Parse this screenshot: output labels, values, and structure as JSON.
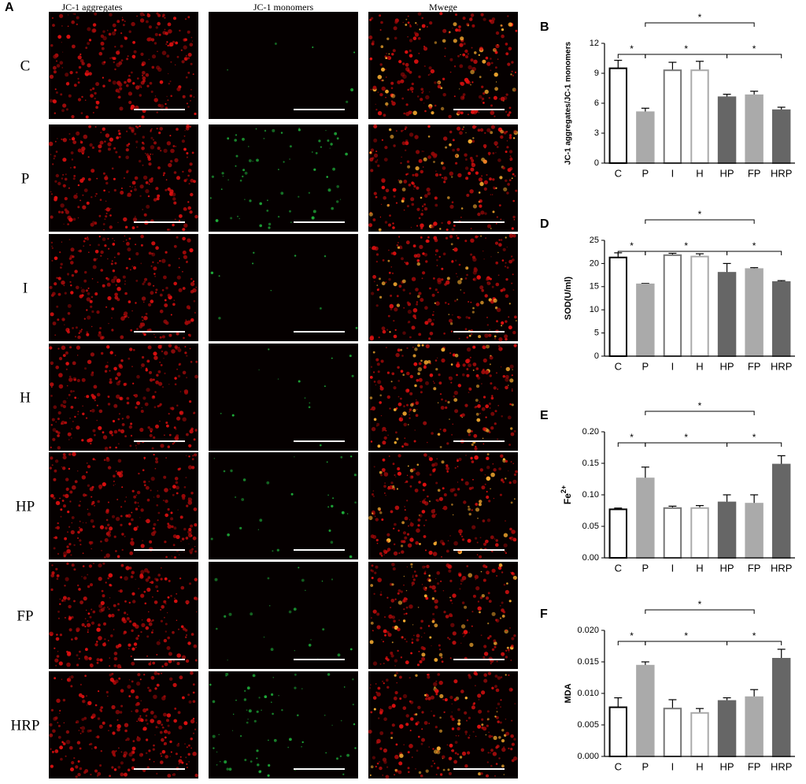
{
  "panel_a": {
    "letter": "A",
    "columns": [
      "JC-1 aggregates",
      "JC-1 monomers",
      "Mwege"
    ],
    "rows": [
      "C",
      "P",
      "I",
      "H",
      "HP",
      "FP",
      "HRP"
    ]
  },
  "chart_data": [
    {
      "type": "bar",
      "panel": "B",
      "y_label": "JC-1 aggregates/JC-1 monomers",
      "categories": [
        "C",
        "P",
        "I",
        "H",
        "HP",
        "FP",
        "HRP"
      ],
      "values": [
        9.5,
        5.1,
        9.3,
        9.3,
        6.6,
        6.8,
        5.3
      ],
      "errors": [
        0.8,
        0.4,
        0.8,
        0.9,
        0.3,
        0.4,
        0.3
      ],
      "colors": [
        "#ffffff",
        "#aaaaaa",
        "#ffffff",
        "#ffffff",
        "#666666",
        "#aaaaaa",
        "#666666"
      ],
      "edge_colors": [
        "#000000",
        "#aaaaaa",
        "#777777",
        "#aaaaaa",
        "#666666",
        "#aaaaaa",
        "#666666"
      ],
      "ylim": [
        0,
        12
      ],
      "yticks": [
        0,
        3,
        6,
        9,
        12
      ],
      "significance": [
        {
          "label": "*",
          "groups": [
            "C",
            "P"
          ]
        },
        {
          "label": "*",
          "groups": [
            "P",
            "HP"
          ]
        },
        {
          "label": "*",
          "groups": [
            "HP",
            "HRP"
          ]
        },
        {
          "label": "*",
          "groups": [
            "P",
            "FP"
          ]
        }
      ]
    },
    {
      "type": "bar",
      "panel": "D",
      "y_label": "SOD(U/ml)",
      "categories": [
        "C",
        "P",
        "I",
        "H",
        "HP",
        "FP",
        "HRP"
      ],
      "values": [
        21.3,
        15.5,
        21.8,
        21.5,
        18,
        18.8,
        16
      ],
      "errors": [
        1,
        0.2,
        0.4,
        0.6,
        2,
        0.3,
        0.3
      ],
      "colors": [
        "#ffffff",
        "#aaaaaa",
        "#ffffff",
        "#ffffff",
        "#666666",
        "#aaaaaa",
        "#666666"
      ],
      "edge_colors": [
        "#000000",
        "#aaaaaa",
        "#777777",
        "#aaaaaa",
        "#666666",
        "#aaaaaa",
        "#666666"
      ],
      "ylim": [
        0,
        25
      ],
      "yticks": [
        0,
        5,
        10,
        15,
        20,
        25
      ],
      "significance": [
        {
          "label": "*",
          "groups": [
            "C",
            "P"
          ]
        },
        {
          "label": "*",
          "groups": [
            "P",
            "HP"
          ]
        },
        {
          "label": "*",
          "groups": [
            "HP",
            "HRP"
          ]
        },
        {
          "label": "*",
          "groups": [
            "P",
            "FP"
          ]
        }
      ]
    },
    {
      "type": "bar",
      "panel": "E",
      "y_label": "Fe",
      "y_label_sup": "2+",
      "categories": [
        "C",
        "P",
        "I",
        "H",
        "HP",
        "FP",
        "HRP"
      ],
      "values": [
        0.077,
        0.126,
        0.079,
        0.079,
        0.088,
        0.086,
        0.148
      ],
      "errors": [
        0.002,
        0.018,
        0.003,
        0.004,
        0.012,
        0.014,
        0.014
      ],
      "colors": [
        "#ffffff",
        "#aaaaaa",
        "#ffffff",
        "#ffffff",
        "#666666",
        "#aaaaaa",
        "#666666"
      ],
      "edge_colors": [
        "#000000",
        "#aaaaaa",
        "#777777",
        "#aaaaaa",
        "#666666",
        "#aaaaaa",
        "#666666"
      ],
      "ylim": [
        0,
        0.2
      ],
      "yticks": [
        {
          "value": 0,
          "label": "0.00"
        },
        {
          "value": 0.05,
          "label": "0.05"
        },
        {
          "value": 0.1,
          "label": "0.10"
        },
        {
          "value": 0.15,
          "label": "0.15"
        },
        {
          "value": 0.2,
          "label": "0.20"
        }
      ],
      "significance": [
        {
          "label": "*",
          "groups": [
            "C",
            "P"
          ]
        },
        {
          "label": "*",
          "groups": [
            "P",
            "HP"
          ]
        },
        {
          "label": "*",
          "groups": [
            "HP",
            "HRP"
          ]
        },
        {
          "label": "*",
          "groups": [
            "P",
            "FP"
          ]
        }
      ]
    },
    {
      "type": "bar",
      "panel": "F",
      "y_label": "MDA",
      "categories": [
        "C",
        "P",
        "I",
        "H",
        "HP",
        "FP",
        "HRP"
      ],
      "values": [
        0.0078,
        0.0144,
        0.0076,
        0.0069,
        0.0088,
        0.0094,
        0.0155
      ],
      "errors": [
        0.0015,
        0.0006,
        0.0014,
        0.0007,
        0.0005,
        0.0012,
        0.0015
      ],
      "colors": [
        "#ffffff",
        "#aaaaaa",
        "#ffffff",
        "#ffffff",
        "#666666",
        "#aaaaaa",
        "#666666"
      ],
      "edge_colors": [
        "#000000",
        "#aaaaaa",
        "#777777",
        "#aaaaaa",
        "#666666",
        "#aaaaaa",
        "#666666"
      ],
      "ylim": [
        0,
        0.02
      ],
      "yticks": [
        {
          "value": 0,
          "label": "0.000"
        },
        {
          "value": 0.005,
          "label": "0.005"
        },
        {
          "value": 0.01,
          "label": "0.010"
        },
        {
          "value": 0.015,
          "label": "0.015"
        },
        {
          "value": 0.02,
          "label": "0.020"
        }
      ],
      "significance": [
        {
          "label": "*",
          "groups": [
            "C",
            "P"
          ]
        },
        {
          "label": "*",
          "groups": [
            "P",
            "HP"
          ]
        },
        {
          "label": "*",
          "groups": [
            "HP",
            "HRP"
          ]
        },
        {
          "label": "*",
          "groups": [
            "P",
            "FP"
          ]
        }
      ]
    }
  ]
}
